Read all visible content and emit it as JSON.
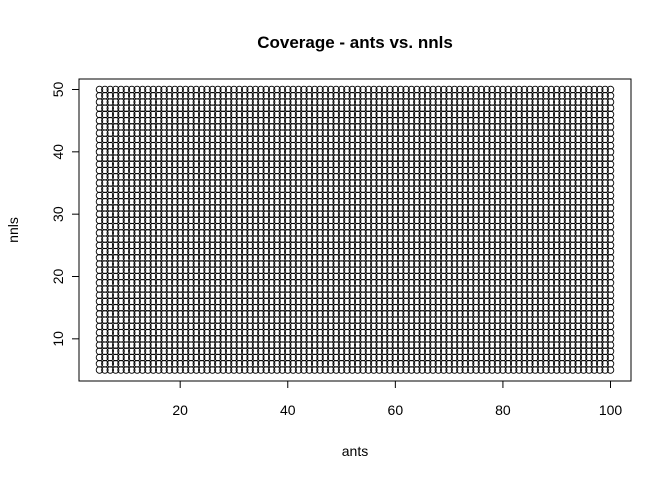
{
  "chart_data": {
    "type": "scatter",
    "title": "Coverage - ants vs. nnls",
    "xlabel": "ants",
    "ylabel": "nnls",
    "xlim": [
      5,
      100
    ],
    "ylim": [
      5,
      50
    ],
    "xticks": [
      "20",
      "40",
      "60",
      "80",
      "100"
    ],
    "yticks": [
      "10",
      "20",
      "30",
      "40",
      "50"
    ],
    "grid": false,
    "legend": "none",
    "marker": "open-circle",
    "series": [
      {
        "x_values": {
          "from": 5,
          "to": 100,
          "step": 1
        },
        "y_values": {
          "from": 5,
          "to": 50,
          "step": 1
        },
        "pattern": "full grid of every (x, y) combination"
      }
    ]
  }
}
